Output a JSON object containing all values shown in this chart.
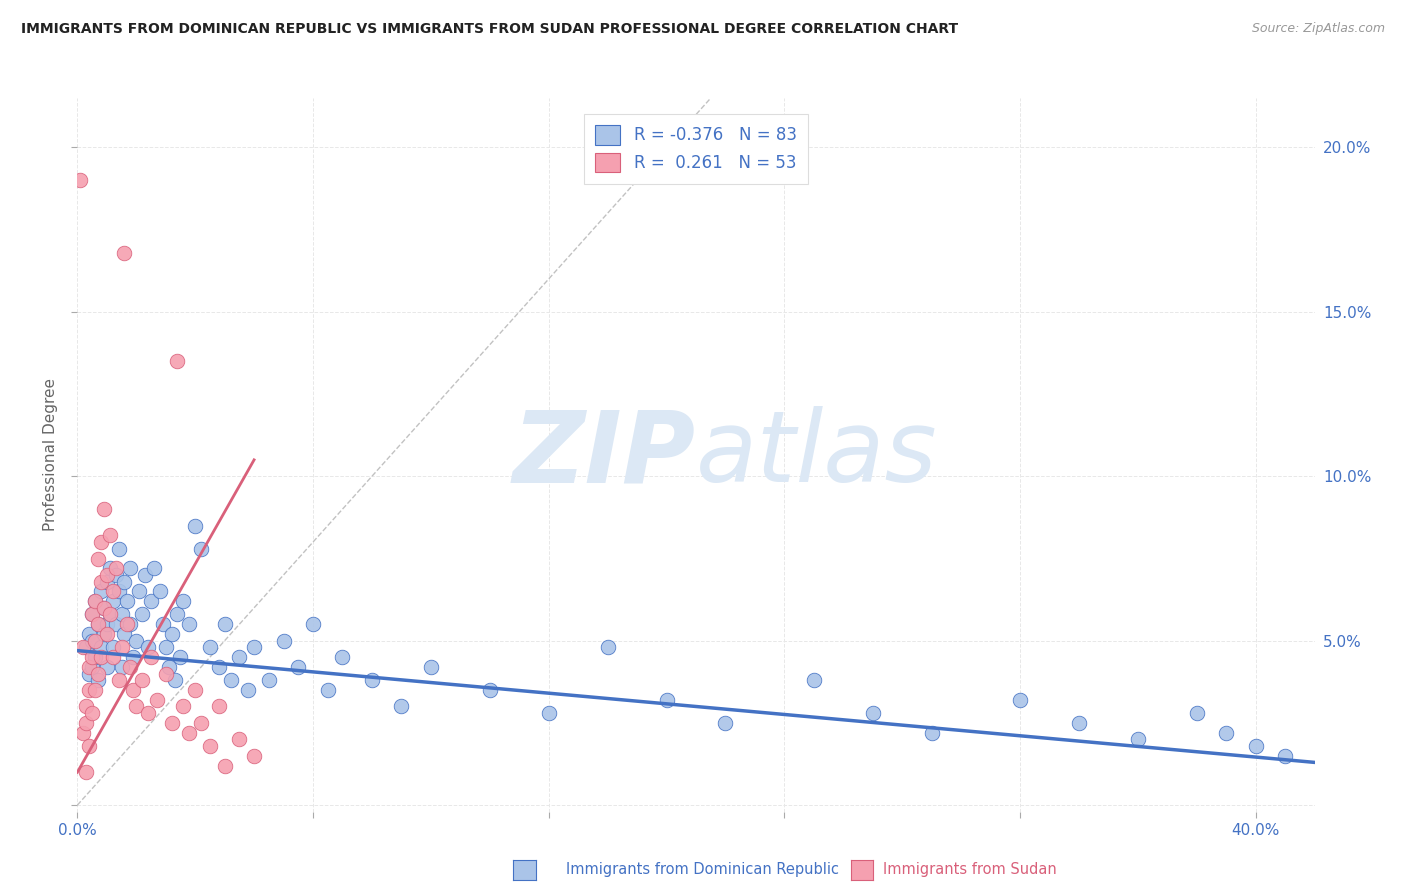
{
  "title": "IMMIGRANTS FROM DOMINICAN REPUBLIC VS IMMIGRANTS FROM SUDAN PROFESSIONAL DEGREE CORRELATION CHART",
  "source": "Source: ZipAtlas.com",
  "ylabel": "Professional Degree",
  "ytick_labels": [
    "",
    "5.0%",
    "10.0%",
    "15.0%",
    "20.0%"
  ],
  "ytick_vals": [
    0.0,
    0.05,
    0.1,
    0.15,
    0.2
  ],
  "xlim": [
    0.0,
    0.42
  ],
  "ylim": [
    -0.002,
    0.215
  ],
  "legend_blue_label": "R = -0.376   N = 83",
  "legend_pink_label": "R =  0.261   N = 53",
  "legend_labels_bottom": [
    "Immigrants from Dominican Republic",
    "Immigrants from Sudan"
  ],
  "scatter_blue_color": "#aac4e8",
  "scatter_pink_color": "#f5a0b0",
  "line_blue_color": "#4472c4",
  "line_pink_color": "#d9607a",
  "dashed_line_color": "#bbbbbb",
  "watermark_zip": "ZIP",
  "watermark_atlas": "atlas",
  "watermark_color": "#dce8f5",
  "blue_points_x": [
    0.003,
    0.004,
    0.004,
    0.005,
    0.005,
    0.005,
    0.006,
    0.006,
    0.007,
    0.007,
    0.008,
    0.008,
    0.009,
    0.009,
    0.01,
    0.01,
    0.01,
    0.011,
    0.011,
    0.012,
    0.012,
    0.013,
    0.013,
    0.014,
    0.014,
    0.015,
    0.015,
    0.016,
    0.016,
    0.017,
    0.018,
    0.018,
    0.019,
    0.02,
    0.021,
    0.022,
    0.023,
    0.024,
    0.025,
    0.026,
    0.028,
    0.029,
    0.03,
    0.031,
    0.032,
    0.033,
    0.034,
    0.035,
    0.036,
    0.038,
    0.04,
    0.042,
    0.045,
    0.048,
    0.05,
    0.052,
    0.055,
    0.058,
    0.06,
    0.065,
    0.07,
    0.075,
    0.08,
    0.085,
    0.09,
    0.1,
    0.11,
    0.12,
    0.14,
    0.16,
    0.18,
    0.2,
    0.22,
    0.25,
    0.27,
    0.29,
    0.32,
    0.34,
    0.36,
    0.38,
    0.39,
    0.4,
    0.41
  ],
  "blue_points_y": [
    0.048,
    0.052,
    0.04,
    0.042,
    0.05,
    0.058,
    0.045,
    0.062,
    0.055,
    0.038,
    0.048,
    0.065,
    0.052,
    0.06,
    0.042,
    0.055,
    0.068,
    0.058,
    0.072,
    0.048,
    0.062,
    0.07,
    0.055,
    0.065,
    0.078,
    0.058,
    0.042,
    0.052,
    0.068,
    0.062,
    0.055,
    0.072,
    0.045,
    0.05,
    0.065,
    0.058,
    0.07,
    0.048,
    0.062,
    0.072,
    0.065,
    0.055,
    0.048,
    0.042,
    0.052,
    0.038,
    0.058,
    0.045,
    0.062,
    0.055,
    0.085,
    0.078,
    0.048,
    0.042,
    0.055,
    0.038,
    0.045,
    0.035,
    0.048,
    0.038,
    0.05,
    0.042,
    0.055,
    0.035,
    0.045,
    0.038,
    0.03,
    0.042,
    0.035,
    0.028,
    0.048,
    0.032,
    0.025,
    0.038,
    0.028,
    0.022,
    0.032,
    0.025,
    0.02,
    0.028,
    0.022,
    0.018,
    0.015
  ],
  "pink_points_x": [
    0.001,
    0.002,
    0.002,
    0.003,
    0.003,
    0.003,
    0.004,
    0.004,
    0.004,
    0.005,
    0.005,
    0.005,
    0.006,
    0.006,
    0.006,
    0.007,
    0.007,
    0.007,
    0.008,
    0.008,
    0.008,
    0.009,
    0.009,
    0.01,
    0.01,
    0.011,
    0.011,
    0.012,
    0.012,
    0.013,
    0.014,
    0.015,
    0.016,
    0.017,
    0.018,
    0.019,
    0.02,
    0.022,
    0.024,
    0.025,
    0.027,
    0.03,
    0.032,
    0.034,
    0.036,
    0.038,
    0.04,
    0.042,
    0.045,
    0.048,
    0.05,
    0.055,
    0.06
  ],
  "pink_points_y": [
    0.19,
    0.048,
    0.022,
    0.03,
    0.025,
    0.01,
    0.042,
    0.035,
    0.018,
    0.058,
    0.045,
    0.028,
    0.062,
    0.05,
    0.035,
    0.075,
    0.055,
    0.04,
    0.068,
    0.08,
    0.045,
    0.09,
    0.06,
    0.07,
    0.052,
    0.082,
    0.058,
    0.065,
    0.045,
    0.072,
    0.038,
    0.048,
    0.168,
    0.055,
    0.042,
    0.035,
    0.03,
    0.038,
    0.028,
    0.045,
    0.032,
    0.04,
    0.025,
    0.135,
    0.03,
    0.022,
    0.035,
    0.025,
    0.018,
    0.03,
    0.012,
    0.02,
    0.015
  ],
  "blue_line_x": [
    0.0,
    0.42
  ],
  "blue_line_y": [
    0.047,
    0.013
  ],
  "pink_line_x": [
    0.0,
    0.06
  ],
  "pink_line_y": [
    0.01,
    0.105
  ],
  "diag_line_x": [
    0.0,
    0.215
  ],
  "diag_line_y": [
    0.0,
    0.215
  ],
  "grid_color": "#e8e8e8",
  "tick_color": "#4472c4",
  "background_color": "#ffffff"
}
